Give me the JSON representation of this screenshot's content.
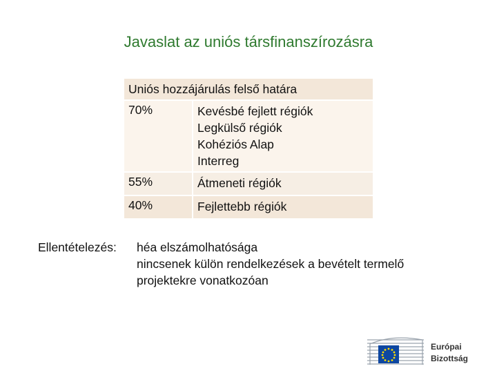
{
  "title": "Javaslat az uniós társfinanszírozásra",
  "table": {
    "header": "Uniós hozzájárulás felső határa",
    "rows": [
      {
        "pct": "70%",
        "regions": [
          "Kevésbé fejlett régiók",
          "Legkülső régiók",
          "Kohéziós Alap",
          "Interreg"
        ]
      },
      {
        "pct": "55%",
        "regions": [
          "Átmeneti régiók"
        ]
      },
      {
        "pct": "40%",
        "regions": [
          "Fejlettebb régiók"
        ]
      }
    ]
  },
  "offsetting": {
    "label": "Ellentételezés:",
    "line1": "héa elszámolhatósága",
    "line2": "nincsenek külön rendelkezések a bevételt termelő",
    "line3": "projektekre vonatkozóan"
  },
  "logo": {
    "line1": "Európai",
    "line2": "Bizottság",
    "icon": "eu-flag-building-icon"
  },
  "colors": {
    "title": "#2f7a2f",
    "header_bg": "#f3e7d9",
    "eu_blue": "#0e47a1",
    "eu_yellow": "#ffdd00"
  }
}
